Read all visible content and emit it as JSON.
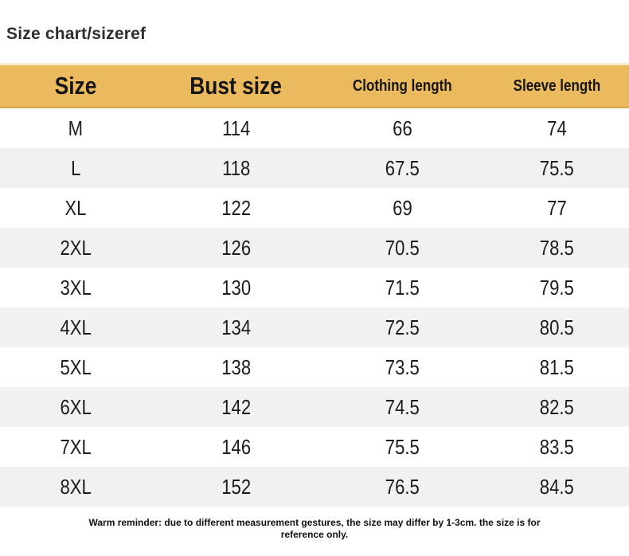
{
  "page": {
    "title": "Size chart/sizeref"
  },
  "table": {
    "header_bg": "#ecba5e",
    "alt_row_bg": "#f1f1f1",
    "columns": [
      {
        "label": "Size",
        "large": true
      },
      {
        "label": "Bust size",
        "large": true
      },
      {
        "label": "Clothing length",
        "large": false
      },
      {
        "label": "Sleeve length",
        "large": false
      }
    ],
    "rows": [
      [
        "M",
        "114",
        "66",
        "74"
      ],
      [
        "L",
        "118",
        "67.5",
        "75.5"
      ],
      [
        "XL",
        "122",
        "69",
        "77"
      ],
      [
        "2XL",
        "126",
        "70.5",
        "78.5"
      ],
      [
        "3XL",
        "130",
        "71.5",
        "79.5"
      ],
      [
        "4XL",
        "134",
        "72.5",
        "80.5"
      ],
      [
        "5XL",
        "138",
        "73.5",
        "81.5"
      ],
      [
        "6XL",
        "142",
        "74.5",
        "82.5"
      ],
      [
        "7XL",
        "146",
        "75.5",
        "83.5"
      ],
      [
        "8XL",
        "152",
        "76.5",
        "84.5"
      ]
    ]
  },
  "footer": {
    "lines": [
      "Warm reminder: due to different measurement gestures, the size may differ by 1-3cm. the size is for",
      "reference only."
    ]
  },
  "chart_data": {
    "type": "table",
    "title": "Size chart/sizeref",
    "columns": [
      "Size",
      "Bust size",
      "Clothing length",
      "Sleeve length"
    ],
    "rows": [
      [
        "M",
        114,
        66,
        74
      ],
      [
        "L",
        118,
        67.5,
        75.5
      ],
      [
        "XL",
        122,
        69,
        77
      ],
      [
        "2XL",
        126,
        70.5,
        78.5
      ],
      [
        "3XL",
        130,
        71.5,
        79.5
      ],
      [
        "4XL",
        134,
        72.5,
        80.5
      ],
      [
        "5XL",
        138,
        73.5,
        81.5
      ],
      [
        "6XL",
        142,
        74.5,
        82.5
      ],
      [
        "7XL",
        146,
        75.5,
        83.5
      ],
      [
        "8XL",
        152,
        76.5,
        84.5
      ]
    ],
    "note": "Warm reminder: due to different measurement gestures, the size may differ by 1-3cm. the size is for reference only.",
    "layout": {
      "header_bg": "#ecba5e",
      "alternating_rows": true
    }
  }
}
